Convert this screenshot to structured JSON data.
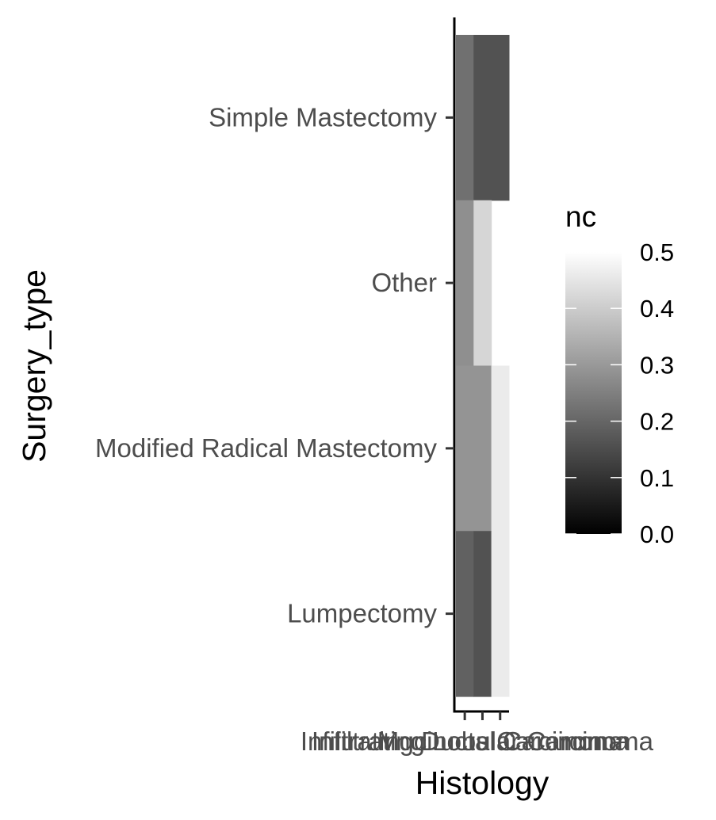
{
  "chart_data": {
    "type": "heatmap",
    "xlabel": "Histology",
    "ylabel": "Surgery_type",
    "x_categories": [
      "Infiltrating Ductal Carcinoma",
      "Infiltrating Lobular Carcinoma",
      "Mucinous Carcinoma"
    ],
    "y_categories": [
      "Simple Mastectomy",
      "Other",
      "Modified Radical Mastectomy",
      "Lumpectomy"
    ],
    "cells": [
      {
        "x": "Infiltrating Ductal Carcinoma",
        "y": "Simple Mastectomy",
        "value": 0.22
      },
      {
        "x": "Infiltrating Lobular Carcinoma",
        "y": "Simple Mastectomy",
        "value": 0.16
      },
      {
        "x": "Mucinous Carcinoma",
        "y": "Simple Mastectomy",
        "value": 0.16
      },
      {
        "x": "Infiltrating Ductal Carcinoma",
        "y": "Other",
        "value": 0.28
      },
      {
        "x": "Infiltrating Lobular Carcinoma",
        "y": "Other",
        "value": 0.42
      },
      {
        "x": "Infiltrating Ductal Carcinoma",
        "y": "Modified Radical Mastectomy",
        "value": 0.29
      },
      {
        "x": "Infiltrating Lobular Carcinoma",
        "y": "Modified Radical Mastectomy",
        "value": 0.29
      },
      {
        "x": "Mucinous Carcinoma",
        "y": "Modified Radical Mastectomy",
        "value": 0.46
      },
      {
        "x": "Infiltrating Ductal Carcinoma",
        "y": "Lumpectomy",
        "value": 0.19
      },
      {
        "x": "Infiltrating Lobular Carcinoma",
        "y": "Lumpectomy",
        "value": 0.16
      },
      {
        "x": "Mucinous Carcinoma",
        "y": "Lumpectomy",
        "value": 0.46
      }
    ],
    "legend": {
      "title": "nc",
      "range": [
        0,
        0.5
      ],
      "ticks": [
        {
          "value": 0.0,
          "label": "0.0"
        },
        {
          "value": 0.1,
          "label": "0.1"
        },
        {
          "value": 0.2,
          "label": "0.2"
        },
        {
          "value": 0.3,
          "label": "0.3"
        },
        {
          "value": 0.4,
          "label": "0.4"
        },
        {
          "value": 0.5,
          "label": "0.5"
        }
      ],
      "colors": {
        "low": "#000000",
        "high": "#ffffff"
      },
      "placement": "right"
    },
    "grid": false
  }
}
